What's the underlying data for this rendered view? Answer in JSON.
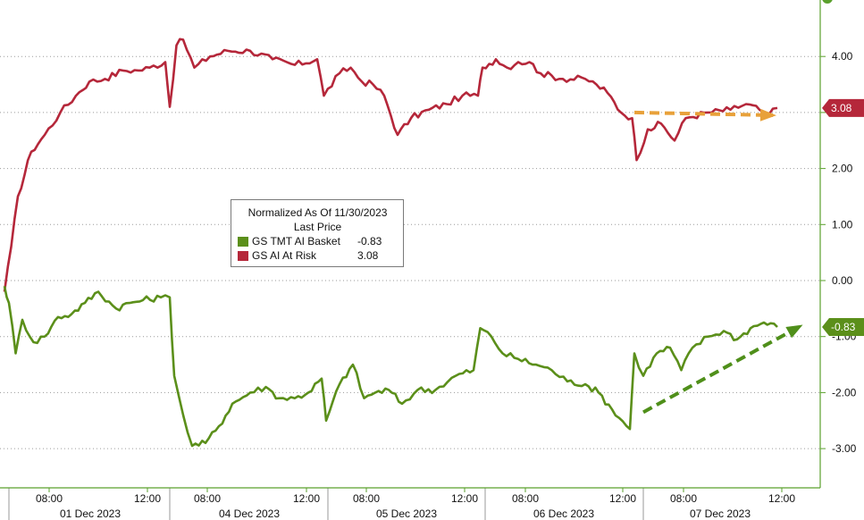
{
  "chart_data": {
    "type": "line",
    "title": "",
    "xlabel": "",
    "ylabel": "",
    "ylim": [
      -3.5,
      5
    ],
    "y_ticks": [
      "-3.00",
      "-2.00",
      "-1.00",
      "0.00",
      "1.00",
      "2.00",
      "3.00",
      "4.00"
    ],
    "y_tick_values": [
      -3,
      -2,
      -1,
      0,
      1,
      2,
      3,
      4
    ],
    "x_ticks": [
      "08:00",
      "12:00",
      "08:00",
      "12:00",
      "08:00",
      "12:00",
      "08:00",
      "12:00",
      "08:00",
      "12:00"
    ],
    "x_day_labels": [
      "01 Dec 2023",
      "04 Dec 2023",
      "05 Dec 2023",
      "06 Dec 2023",
      "07 Dec 2023"
    ],
    "legend": {
      "header": "Normalized As Of 11/30/2023",
      "subheader": "Last Price",
      "placement": "center-left",
      "items": [
        {
          "name": "GS TMT AI Basket",
          "value": "-0.83",
          "color": "#5b8f1a"
        },
        {
          "name": "GS AI At Risk",
          "value": "3.08",
          "color": "#b5273a"
        }
      ]
    },
    "series": [
      {
        "name": "GS AI At Risk",
        "color": "#b5273a",
        "last_label": "3.08",
        "values": [
          [
            0,
            -0.2
          ],
          [
            0.3,
            0.6
          ],
          [
            0.6,
            1.5
          ],
          [
            1.2,
            2.3
          ],
          [
            1.8,
            2.6
          ],
          [
            2.5,
            3.0
          ],
          [
            3.2,
            3.3
          ],
          [
            3.8,
            3.55
          ],
          [
            4.5,
            3.6
          ],
          [
            5.3,
            3.75
          ],
          [
            6.0,
            3.75
          ],
          [
            6.5,
            3.8
          ],
          [
            7.2,
            3.9
          ],
          [
            7.4,
            3.1
          ],
          [
            7.7,
            4.2
          ],
          [
            8.0,
            4.3
          ],
          [
            8.5,
            3.8
          ],
          [
            9.2,
            4.0
          ],
          [
            10.0,
            4.1
          ],
          [
            11.0,
            4.1
          ],
          [
            12.0,
            3.95
          ],
          [
            13.0,
            3.85
          ],
          [
            14.0,
            3.95
          ],
          [
            14.3,
            3.3
          ],
          [
            15.0,
            3.7
          ],
          [
            15.5,
            3.8
          ],
          [
            16.0,
            3.55
          ],
          [
            16.5,
            3.5
          ],
          [
            17.0,
            3.3
          ],
          [
            17.6,
            2.6
          ],
          [
            18.2,
            2.9
          ],
          [
            19.0,
            3.05
          ],
          [
            19.8,
            3.15
          ],
          [
            20.5,
            3.3
          ],
          [
            21.2,
            3.3
          ],
          [
            21.4,
            3.8
          ],
          [
            22.0,
            3.95
          ],
          [
            22.5,
            3.8
          ],
          [
            23.0,
            3.9
          ],
          [
            23.5,
            3.9
          ],
          [
            24.0,
            3.7
          ],
          [
            25.0,
            3.6
          ],
          [
            26.0,
            3.6
          ],
          [
            26.5,
            3.5
          ],
          [
            27.0,
            3.35
          ],
          [
            27.6,
            3.0
          ],
          [
            28.1,
            2.9
          ],
          [
            28.3,
            2.15
          ],
          [
            28.8,
            2.7
          ],
          [
            29.4,
            2.8
          ],
          [
            30.0,
            2.5
          ],
          [
            30.5,
            2.9
          ],
          [
            31.5,
            3.0
          ],
          [
            32.5,
            3.05
          ],
          [
            33.2,
            3.15
          ],
          [
            33.8,
            3.05
          ],
          [
            34.2,
            2.95
          ],
          [
            34.6,
            3.08
          ]
        ]
      },
      {
        "name": "GS TMT AI Basket",
        "color": "#5b8f1a",
        "last_label": "-0.83",
        "values": [
          [
            0,
            -0.1
          ],
          [
            0.2,
            -0.4
          ],
          [
            0.5,
            -1.3
          ],
          [
            0.8,
            -0.7
          ],
          [
            1.3,
            -1.1
          ],
          [
            1.8,
            -1.0
          ],
          [
            2.4,
            -0.65
          ],
          [
            3.0,
            -0.6
          ],
          [
            3.6,
            -0.4
          ],
          [
            4.2,
            -0.2
          ],
          [
            5.0,
            -0.5
          ],
          [
            5.6,
            -0.4
          ],
          [
            6.2,
            -0.35
          ],
          [
            7.0,
            -0.3
          ],
          [
            7.4,
            -0.3
          ],
          [
            7.6,
            -1.7
          ],
          [
            8.0,
            -2.4
          ],
          [
            8.4,
            -2.95
          ],
          [
            9.0,
            -2.9
          ],
          [
            9.6,
            -2.6
          ],
          [
            10.2,
            -2.2
          ],
          [
            11.0,
            -2.0
          ],
          [
            11.7,
            -1.9
          ],
          [
            12.3,
            -2.1
          ],
          [
            13.0,
            -2.1
          ],
          [
            13.6,
            -2.0
          ],
          [
            14.2,
            -1.75
          ],
          [
            14.4,
            -2.5
          ],
          [
            15.0,
            -1.85
          ],
          [
            15.6,
            -1.5
          ],
          [
            16.1,
            -2.1
          ],
          [
            16.6,
            -2.0
          ],
          [
            17.2,
            -1.95
          ],
          [
            17.8,
            -2.2
          ],
          [
            18.5,
            -1.95
          ],
          [
            19.3,
            -1.95
          ],
          [
            20.2,
            -1.7
          ],
          [
            21.0,
            -1.6
          ],
          [
            21.3,
            -0.85
          ],
          [
            21.8,
            -1.0
          ],
          [
            22.3,
            -1.3
          ],
          [
            23.0,
            -1.4
          ],
          [
            23.8,
            -1.5
          ],
          [
            24.5,
            -1.6
          ],
          [
            25.2,
            -1.8
          ],
          [
            26.0,
            -1.85
          ],
          [
            26.6,
            -2.0
          ],
          [
            27.2,
            -2.3
          ],
          [
            28.0,
            -2.65
          ],
          [
            28.2,
            -1.3
          ],
          [
            28.6,
            -1.7
          ],
          [
            29.2,
            -1.3
          ],
          [
            29.8,
            -1.2
          ],
          [
            30.3,
            -1.6
          ],
          [
            30.8,
            -1.2
          ],
          [
            31.5,
            -1.0
          ],
          [
            32.2,
            -0.9
          ],
          [
            32.8,
            -1.05
          ],
          [
            33.4,
            -0.85
          ],
          [
            34.0,
            -0.75
          ],
          [
            34.6,
            -0.83
          ]
        ]
      }
    ],
    "annotations": [
      {
        "kind": "dashed-arrow",
        "color": "#e8a13a",
        "from": [
          28.2,
          3.0
        ],
        "to": [
          34.4,
          2.95
        ]
      },
      {
        "kind": "dashed-arrow",
        "color": "#4f8f1a",
        "from": [
          28.6,
          -2.35
        ],
        "to": [
          35.6,
          -0.82
        ]
      }
    ]
  }
}
